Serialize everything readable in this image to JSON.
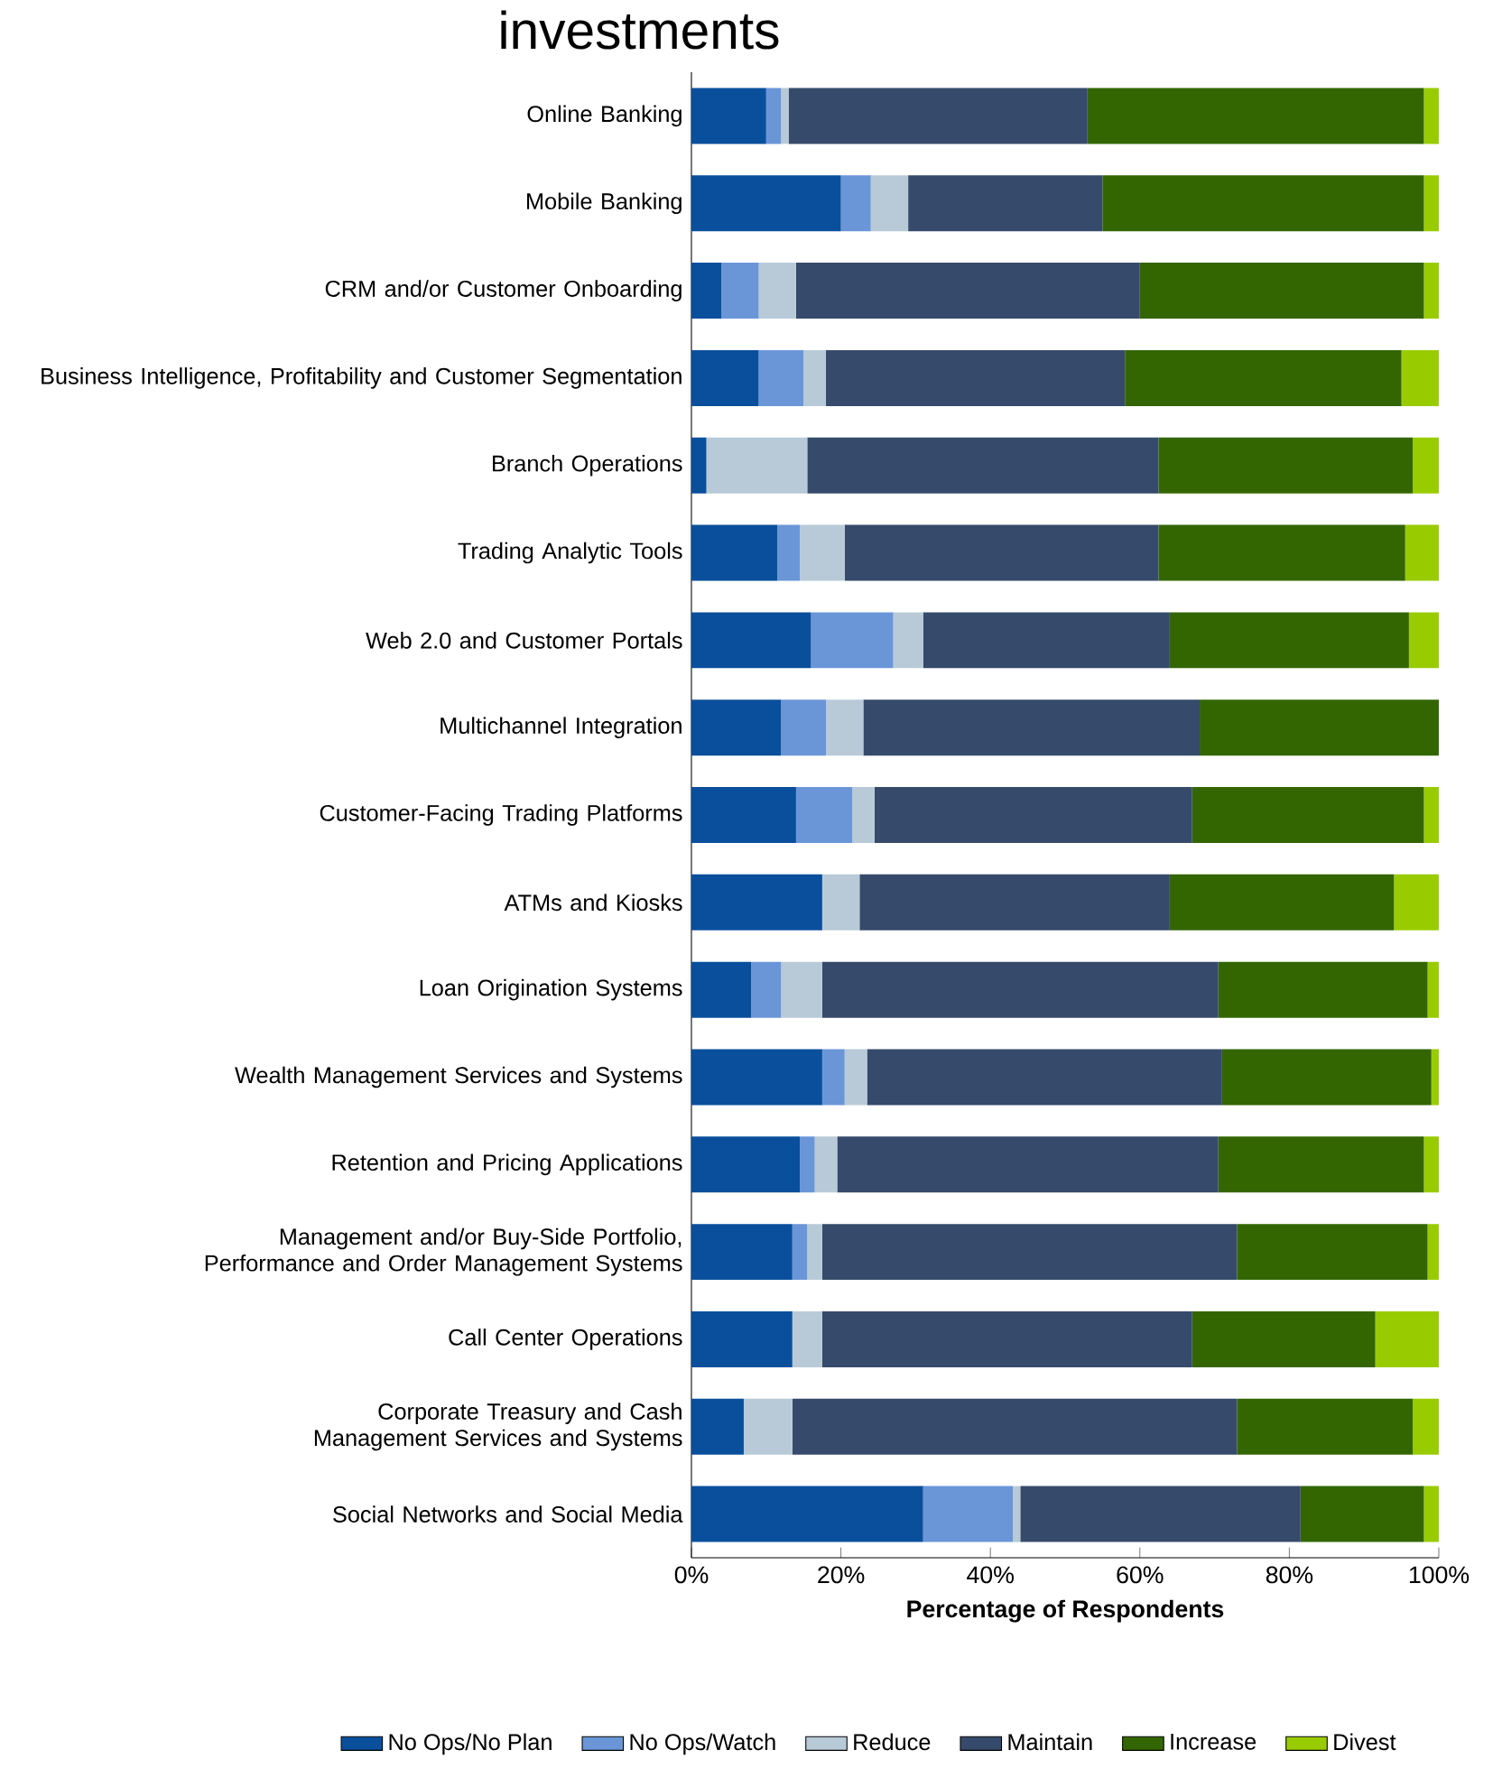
{
  "chart_data": {
    "type": "bar",
    "orientation": "horizontal",
    "stacked": true,
    "title": "investments",
    "xlabel": "Percentage of Respondents",
    "categories": [
      "Online Banking",
      "Mobile Banking",
      "CRM and/or Customer Onboarding",
      "Business Intelligence, Profitability and Customer Segmentation",
      "Branch Operations",
      "Trading Analytic Tools",
      "Web 2.0 and Customer Portals",
      "Multichannel Integration",
      "Customer-Facing Trading Platforms",
      "ATMs and Kiosks",
      "Loan Origination Systems",
      "Wealth Management Services and Systems",
      "Retention and Pricing Applications",
      "Management and/or Buy-Side Portfolio, Performance and Order Management Systems",
      "Call Center Operations",
      "Corporate Treasury and Cash Management Services and Systems",
      "Social Networks and Social Media"
    ],
    "series": [
      {
        "name": "No Ops/No Plan",
        "color": "#0a4f9c",
        "values": [
          10,
          20,
          4,
          9,
          2,
          11.5,
          16,
          12,
          14,
          17.5,
          8,
          17.5,
          14.5,
          13.5,
          13.5,
          7,
          31
        ]
      },
      {
        "name": "No Ops/Watch",
        "color": "#6a96d8",
        "values": [
          2,
          4,
          5,
          6,
          0,
          3,
          11,
          6,
          7.5,
          0,
          4,
          3,
          2,
          2,
          0,
          0,
          12
        ]
      },
      {
        "name": "Reduce",
        "color": "#b8cad8",
        "values": [
          1,
          5,
          5,
          3,
          13.5,
          6,
          4,
          5,
          3,
          5,
          5.5,
          3,
          3,
          2,
          4,
          6.5,
          1
        ]
      },
      {
        "name": "Maintain",
        "color": "#364a6b",
        "values": [
          40,
          26,
          46,
          40,
          47,
          42,
          33,
          45,
          42.5,
          41.5,
          53,
          47.5,
          51,
          55.5,
          49.5,
          59.5,
          37.5
        ]
      },
      {
        "name": "Increase",
        "color": "#336600",
        "values": [
          45,
          43,
          38,
          37,
          34,
          33,
          32,
          32,
          31,
          30,
          28,
          28,
          27.5,
          25.5,
          24.5,
          23.5,
          16.5
        ]
      },
      {
        "name": "Divest",
        "color": "#99cc00",
        "values": [
          2,
          2,
          2,
          5,
          3.5,
          4.5,
          4,
          0,
          2,
          6,
          1.5,
          1,
          2,
          1.5,
          8.5,
          3.5,
          2
        ]
      }
    ],
    "xlim": [
      0,
      100
    ],
    "xticks": [
      {
        "value": 0,
        "label": "0%"
      },
      {
        "value": 20,
        "label": "20%"
      },
      {
        "value": 40,
        "label": "40%"
      },
      {
        "value": 60,
        "label": "60%"
      },
      {
        "value": 80,
        "label": "80%"
      },
      {
        "value": 100,
        "label": "100%"
      }
    ],
    "legend": "bottom"
  }
}
